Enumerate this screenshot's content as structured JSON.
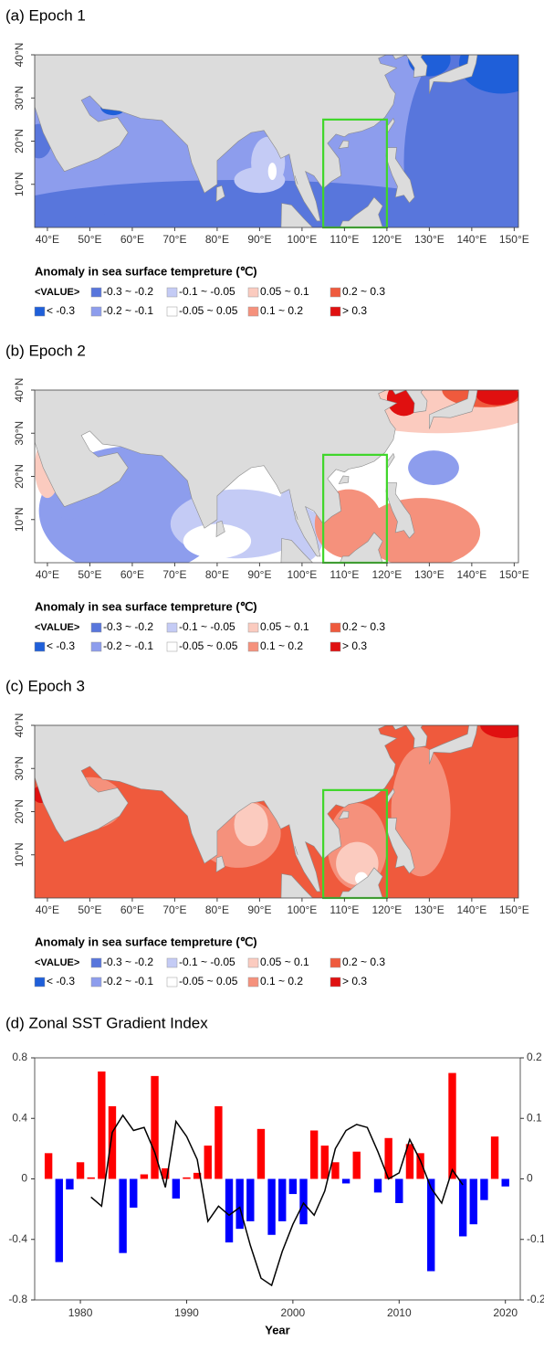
{
  "maps": [
    {
      "title": "(a) Epoch 1"
    },
    {
      "title": "(b) Epoch 2"
    },
    {
      "title": "(c) Epoch 3"
    }
  ],
  "map_axes": {
    "xlim": [
      37,
      151
    ],
    "ylim": [
      0,
      40
    ],
    "xticks": [
      {
        "value": 40,
        "label": "40°E"
      },
      {
        "value": 50,
        "label": "50°E"
      },
      {
        "value": 60,
        "label": "60°E"
      },
      {
        "value": 70,
        "label": "70°E"
      },
      {
        "value": 80,
        "label": "80°E"
      },
      {
        "value": 90,
        "label": "90°E"
      },
      {
        "value": 100,
        "label": "100°E"
      },
      {
        "value": 110,
        "label": "110°E"
      },
      {
        "value": 120,
        "label": "120°E"
      },
      {
        "value": 130,
        "label": "130°E"
      },
      {
        "value": 140,
        "label": "140°E"
      },
      {
        "value": 150,
        "label": "150°E"
      }
    ],
    "yticks": [
      {
        "value": 10,
        "label": "10°N"
      },
      {
        "value": 20,
        "label": "20°N"
      },
      {
        "value": 30,
        "label": "30°N"
      },
      {
        "value": 40,
        "label": "40°N"
      }
    ]
  },
  "legend": {
    "title": "Anomaly in sea surface tempreture (℃)",
    "value_label": "<VALUE>",
    "entries": [
      {
        "label": "< -0.3",
        "color": "#1f5fd9"
      },
      {
        "label": "-0.3 ~ -0.2",
        "color": "#5876dc"
      },
      {
        "label": "-0.2 ~ -0.1",
        "color": "#8d9ded"
      },
      {
        "label": "-0.1 ~ -0.05",
        "color": "#c4cbf5"
      },
      {
        "label": "-0.05 ~ 0.05",
        "color": "#ffffff"
      },
      {
        "label": "0.05 ~ 0.1",
        "color": "#fbcbbf"
      },
      {
        "label": "0.1 ~ 0.2",
        "color": "#f5917c"
      },
      {
        "label": "0.2 ~ 0.3",
        "color": "#ef5a3d"
      },
      {
        "label": "> 0.3",
        "color": "#e01010"
      }
    ]
  },
  "chart_data": {
    "type": "bar",
    "title": "(d) Zonal SST Gradient Index",
    "xlabel": "Year",
    "x": [
      1977,
      1978,
      1979,
      1980,
      1981,
      1982,
      1983,
      1984,
      1985,
      1986,
      1987,
      1988,
      1989,
      1990,
      1991,
      1992,
      1993,
      1994,
      1995,
      1996,
      1997,
      1998,
      1999,
      2000,
      2001,
      2002,
      2003,
      2004,
      2005,
      2006,
      2007,
      2008,
      2009,
      2010,
      2011,
      2012,
      2013,
      2014,
      2015,
      2016,
      2017,
      2018,
      2019,
      2020
    ],
    "xlim": [
      1975.7,
      2021.4
    ],
    "xticks": [
      1980,
      1990,
      2000,
      2010,
      2020
    ],
    "ylim": [
      -0.8,
      0.8
    ],
    "yticks": [
      -0.8,
      -0.4,
      0,
      0.4,
      0.8
    ],
    "y2lim": [
      -0.2,
      0.2
    ],
    "y2ticks": [
      -0.2,
      -0.1,
      0,
      0.1,
      0.2
    ],
    "series": [
      {
        "type": "bar",
        "positive_color": "#ff0000",
        "negative_color": "#0000ff",
        "values": [
          0.17,
          -0.55,
          -0.07,
          0.11,
          0.01,
          0.71,
          0.48,
          -0.49,
          -0.19,
          0.03,
          0.68,
          0.07,
          -0.13,
          0.01,
          0.04,
          0.22,
          0.48,
          -0.42,
          -0.33,
          -0.28,
          0.33,
          -0.37,
          -0.28,
          -0.1,
          -0.3,
          0.32,
          0.22,
          0.11,
          -0.03,
          0.18,
          0.0,
          -0.09,
          0.27,
          -0.16,
          0.23,
          0.17,
          -0.61,
          0.0,
          0.7,
          -0.38,
          -0.3,
          -0.14,
          0.28,
          -0.05
        ]
      },
      {
        "type": "line",
        "axis": "y2",
        "color": "#000000",
        "values": [
          null,
          null,
          null,
          null,
          -0.03,
          -0.045,
          0.077,
          0.105,
          0.08,
          0.085,
          0.044,
          -0.014,
          0.095,
          0.07,
          0.032,
          -0.07,
          -0.045,
          -0.06,
          -0.047,
          -0.11,
          -0.164,
          -0.176,
          -0.12,
          -0.075,
          -0.04,
          -0.06,
          -0.02,
          0.05,
          0.08,
          0.09,
          0.085,
          0.045,
          0.0,
          0.01,
          0.065,
          0.03,
          -0.015,
          -0.04,
          0.015,
          -0.01,
          null,
          null,
          null,
          null
        ]
      }
    ]
  }
}
